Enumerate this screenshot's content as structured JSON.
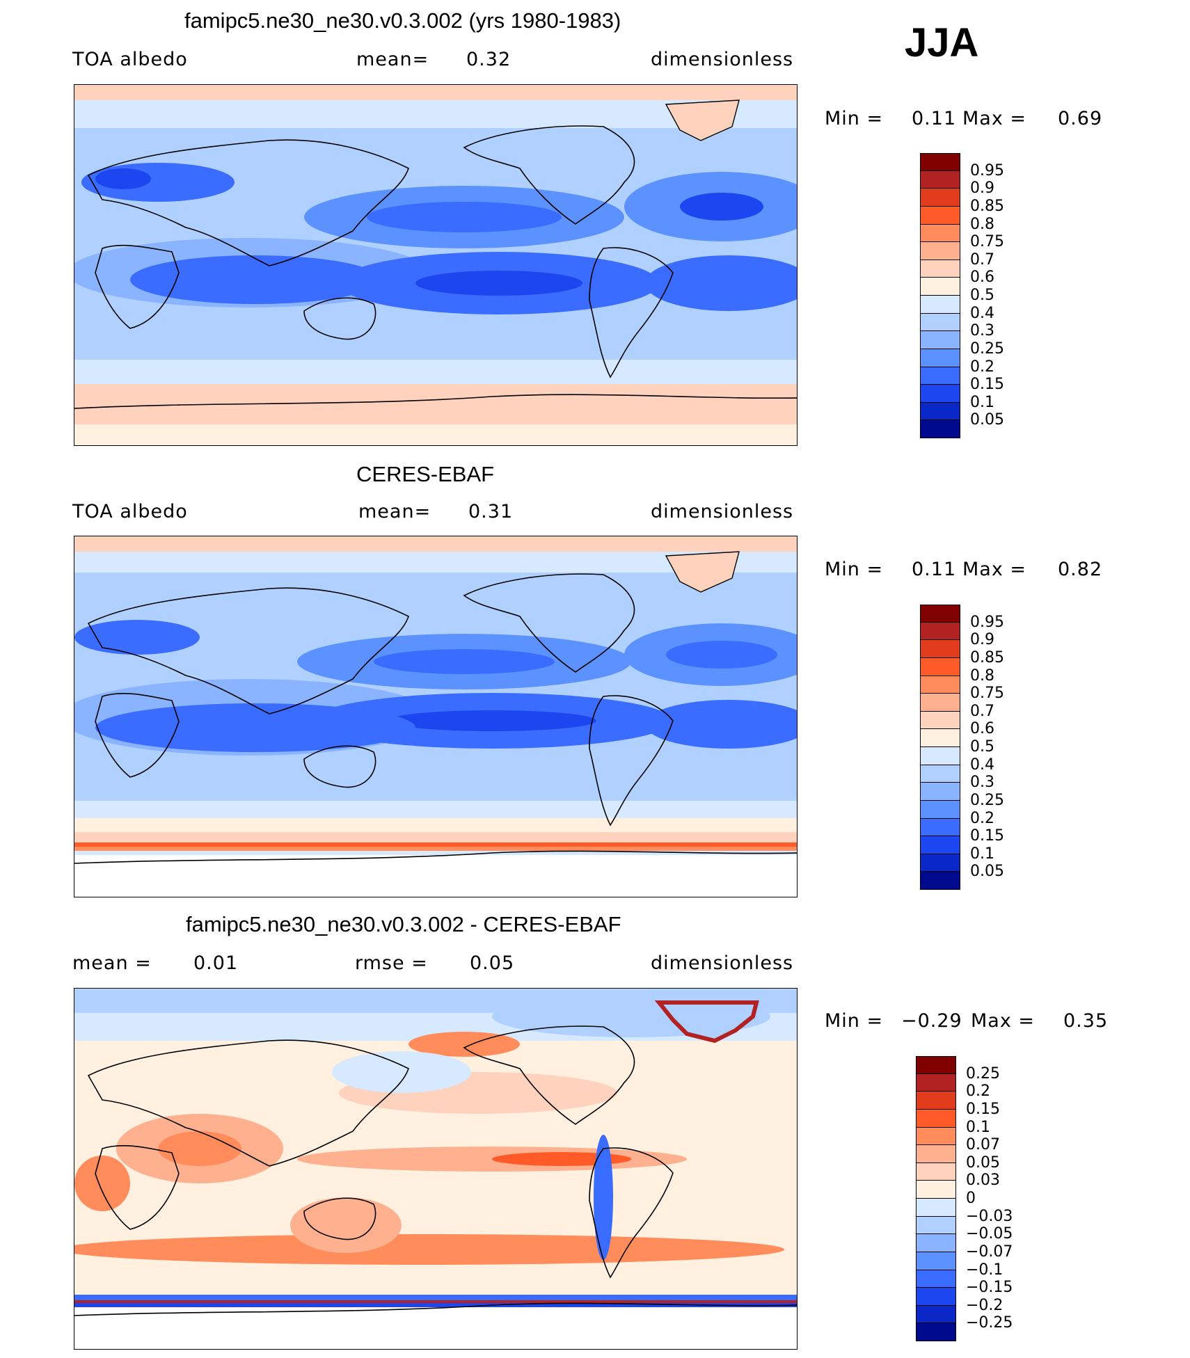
{
  "season": "JJA",
  "panels": [
    {
      "title": "famipc5.ne30_ne30.v0.3.002 (yrs 1980-1983)",
      "left_label": "TOA albedo",
      "center_label": "mean=",
      "center_value": "0.32",
      "right_label": "dimensionless",
      "stats": {
        "min_label": "Min =",
        "min": "0.11",
        "max_label": "Max =",
        "max": "0.69"
      },
      "colorbar": {
        "colors": [
          "#800000",
          "#b22222",
          "#e03c1c",
          "#ff5a28",
          "#ff8c5a",
          "#ffb18f",
          "#ffd2bd",
          "#fff0e0",
          "#d6e9ff",
          "#b0d0ff",
          "#8ab4ff",
          "#5c92ff",
          "#3a6dff",
          "#1c46f0",
          "#0a28c8",
          "#000a8c"
        ],
        "labels": [
          "0.95",
          "0.9",
          "0.85",
          "0.8",
          "0.75",
          "0.7",
          "0.6",
          "0.5",
          "0.4",
          "0.3",
          "0.25",
          "0.2",
          "0.15",
          "0.1",
          "0.05"
        ]
      }
    },
    {
      "title": "CERES-EBAF",
      "left_label": "TOA albedo",
      "center_label": "mean=",
      "center_value": "0.31",
      "right_label": "dimensionless",
      "stats": {
        "min_label": "Min =",
        "min": "0.11",
        "max_label": "Max =",
        "max": "0.82"
      },
      "colorbar": {
        "colors": [
          "#800000",
          "#b22222",
          "#e03c1c",
          "#ff5a28",
          "#ff8c5a",
          "#ffb18f",
          "#ffd2bd",
          "#fff0e0",
          "#d6e9ff",
          "#b0d0ff",
          "#8ab4ff",
          "#5c92ff",
          "#3a6dff",
          "#1c46f0",
          "#0a28c8",
          "#000a8c"
        ],
        "labels": [
          "0.95",
          "0.9",
          "0.85",
          "0.8",
          "0.75",
          "0.7",
          "0.6",
          "0.5",
          "0.4",
          "0.3",
          "0.25",
          "0.2",
          "0.15",
          "0.1",
          "0.05"
        ]
      }
    },
    {
      "title": "famipc5.ne30_ne30.v0.3.002 - CERES-EBAF",
      "left_label": "mean =",
      "left_value": "0.01",
      "center_label": "rmse =",
      "center_value": "0.05",
      "right_label": "dimensionless",
      "stats": {
        "min_label": "Min =",
        "min": "−0.29",
        "max_label": "Max =",
        "max": "0.35"
      },
      "colorbar": {
        "colors": [
          "#800000",
          "#b22222",
          "#e03c1c",
          "#ff5a28",
          "#ff8c5a",
          "#ffb18f",
          "#ffd2bd",
          "#fff0e0",
          "#d6e9ff",
          "#b0d0ff",
          "#8ab4ff",
          "#5c92ff",
          "#3a6dff",
          "#1c46f0",
          "#0a28c8",
          "#000a8c"
        ],
        "labels": [
          "0.25",
          "0.2",
          "0.15",
          "0.1",
          "0.07",
          "0.05",
          "0.03",
          "0",
          "−0.03",
          "−0.05",
          "−0.07",
          "−0.1",
          "−0.15",
          "−0.2",
          "−0.25"
        ]
      }
    }
  ]
}
